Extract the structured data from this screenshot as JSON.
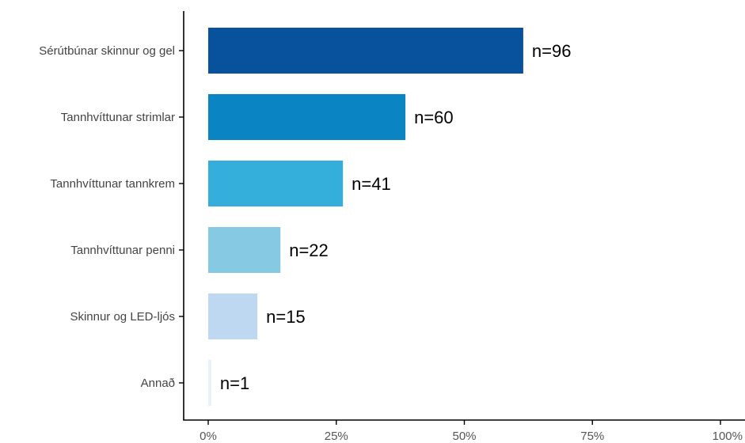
{
  "chart_data": {
    "type": "bar",
    "orientation": "horizontal",
    "title": "",
    "xlabel": "",
    "ylabel": "",
    "categories": [
      "Sérútbúnar skinnur og gel",
      "Tannhvíttunar strimlar",
      "Tannhvíttunar tannkrem",
      "Tannhvíttunar penni",
      "Skinnur og LED-ljós",
      "Annað"
    ],
    "values": [
      61.5,
      38.5,
      26.3,
      14.1,
      9.6,
      0.6
    ],
    "value_unit": "percent",
    "data_labels": [
      "n=96",
      "n=60",
      "n=41",
      "n=22",
      "n=15",
      "n=1"
    ],
    "colors": [
      "#08519c",
      "#0a84c2",
      "#34afdb",
      "#85c9e2",
      "#bdd8f0",
      "#e8f1fb"
    ],
    "xlim": [
      0,
      100
    ],
    "x_ticks": [
      0,
      25,
      50,
      75,
      100
    ],
    "x_tick_labels": [
      "0%",
      "25%",
      "50%",
      "75%",
      "100%"
    ],
    "grid": false,
    "legend": "none"
  }
}
